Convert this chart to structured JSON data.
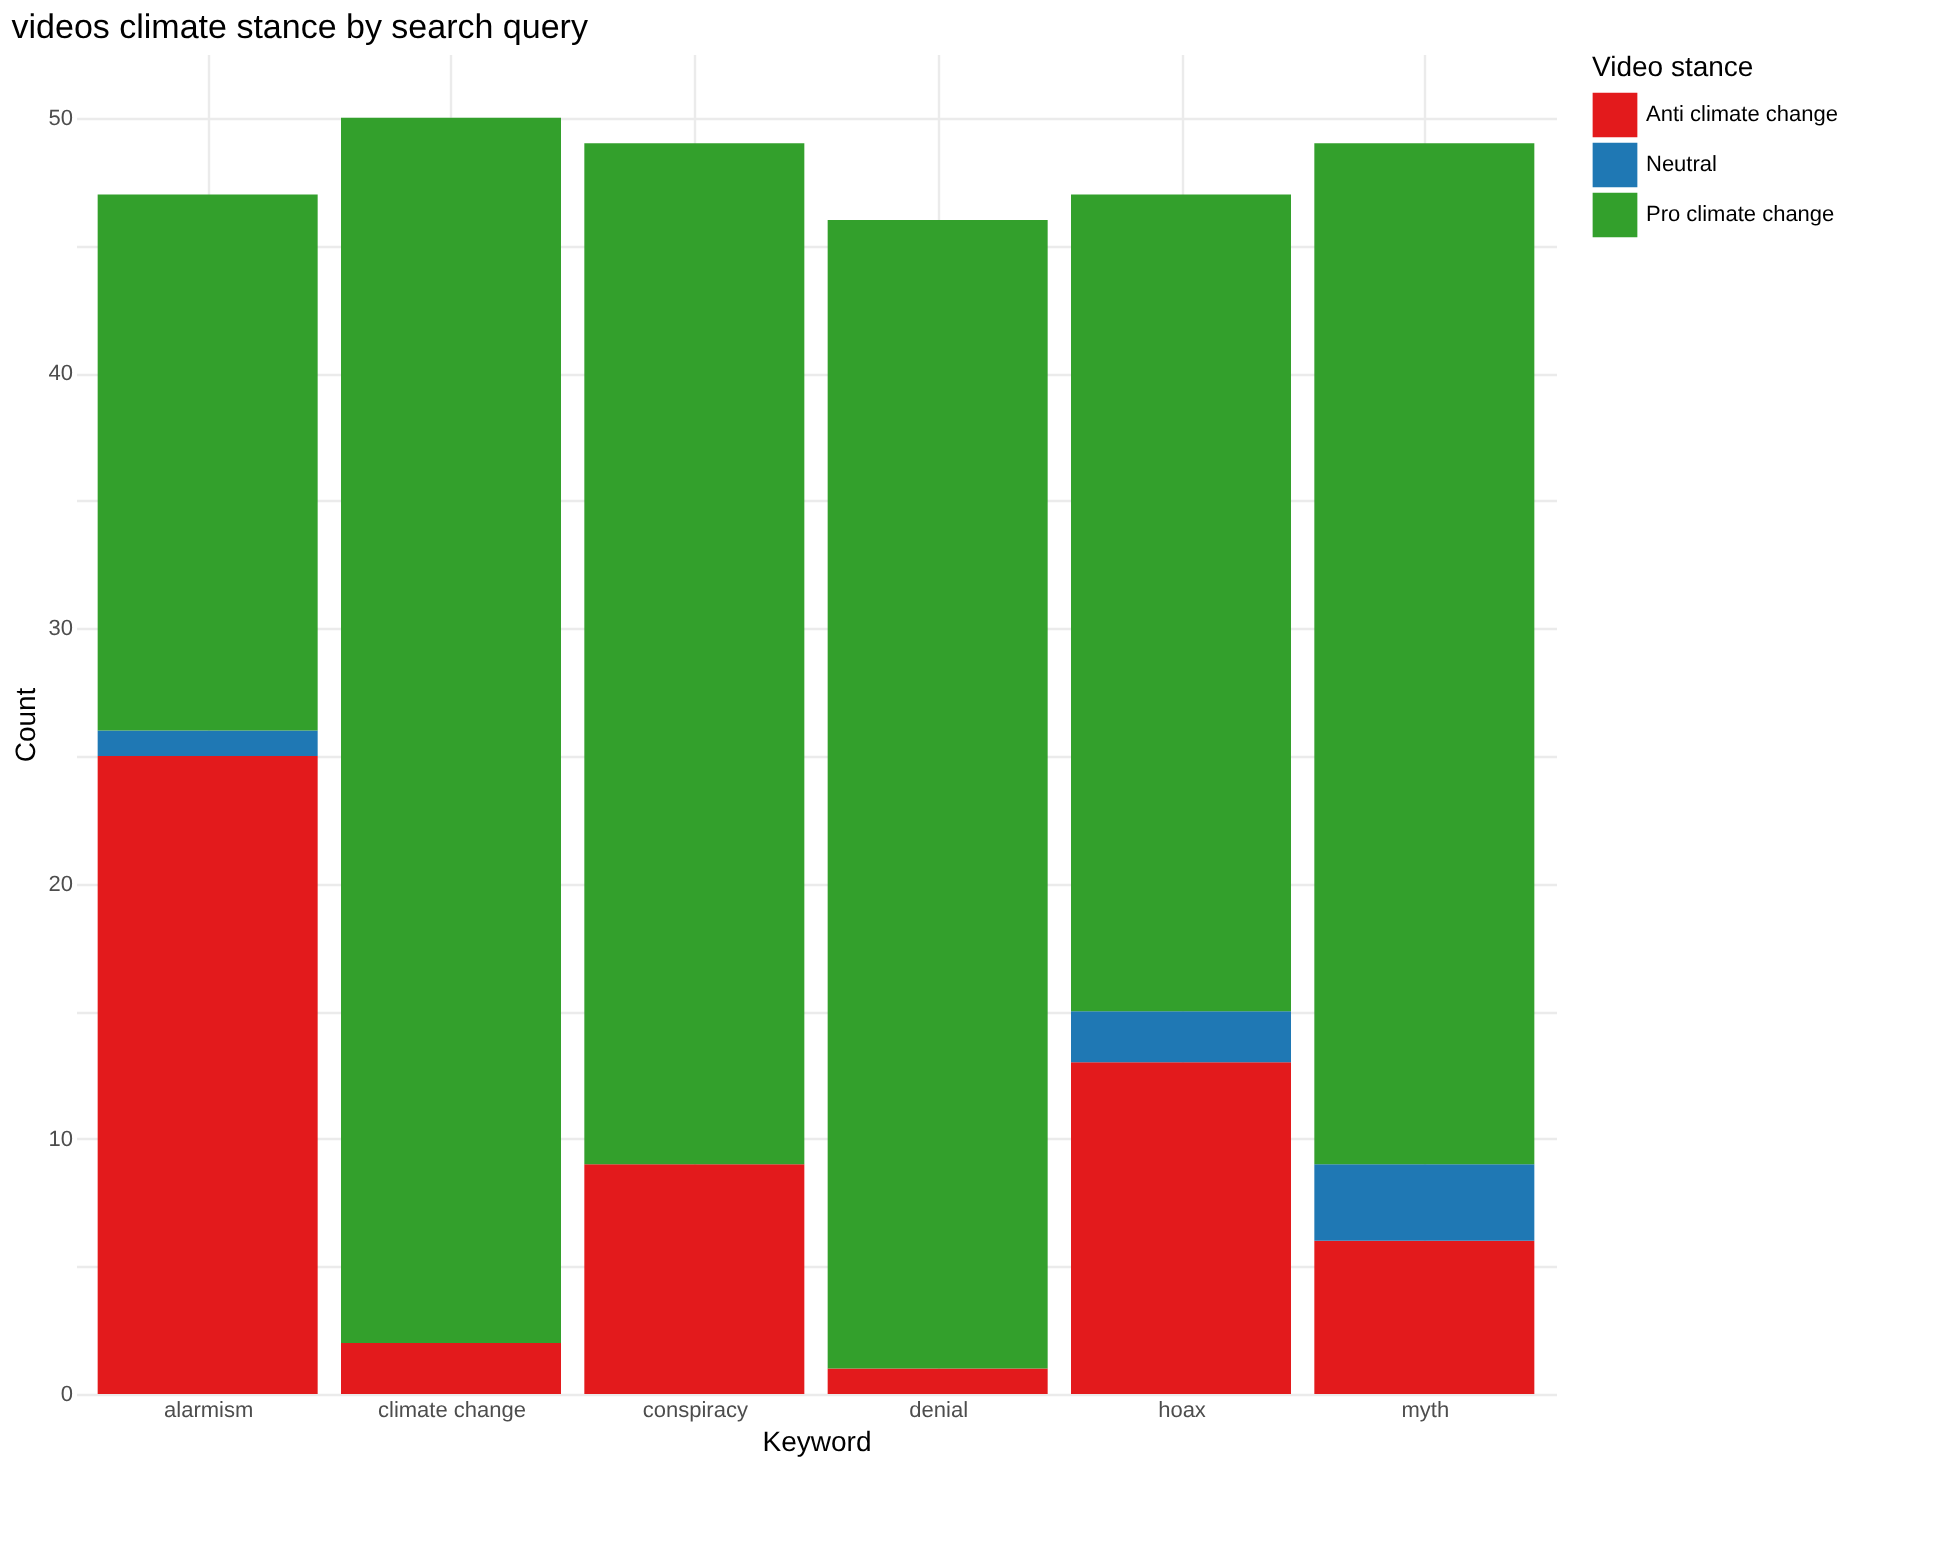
{
  "chart_data": {
    "type": "bar",
    "title": "videos climate stance by search query",
    "xlabel": "Keyword",
    "ylabel": "Count",
    "legend_title": "Video stance",
    "categories": [
      "alarmism",
      "climate change",
      "conspiracy",
      "denial",
      "hoax",
      "myth"
    ],
    "series": [
      {
        "name": "Anti climate change",
        "color": "#e31a1c",
        "values": [
          25,
          2,
          9,
          1,
          13,
          6
        ]
      },
      {
        "name": "Neutral",
        "color": "#1f78b4",
        "values": [
          1,
          0,
          0,
          0,
          2,
          3
        ]
      },
      {
        "name": "Pro climate change",
        "color": "#33a02c",
        "values": [
          21,
          48,
          40,
          45,
          32,
          40
        ]
      }
    ],
    "stacked": true,
    "ylim": [
      0,
      52.5
    ],
    "yticks": [
      0,
      {
        "value": 5,
        "label": null
      },
      10,
      {
        "value": 15,
        "label": null
      },
      20,
      {
        "value": 25,
        "label": null
      },
      30,
      {
        "value": 35,
        "label": null
      },
      40,
      {
        "value": 45,
        "label": null
      },
      50
    ],
    "grid": true,
    "legend": "right"
  }
}
